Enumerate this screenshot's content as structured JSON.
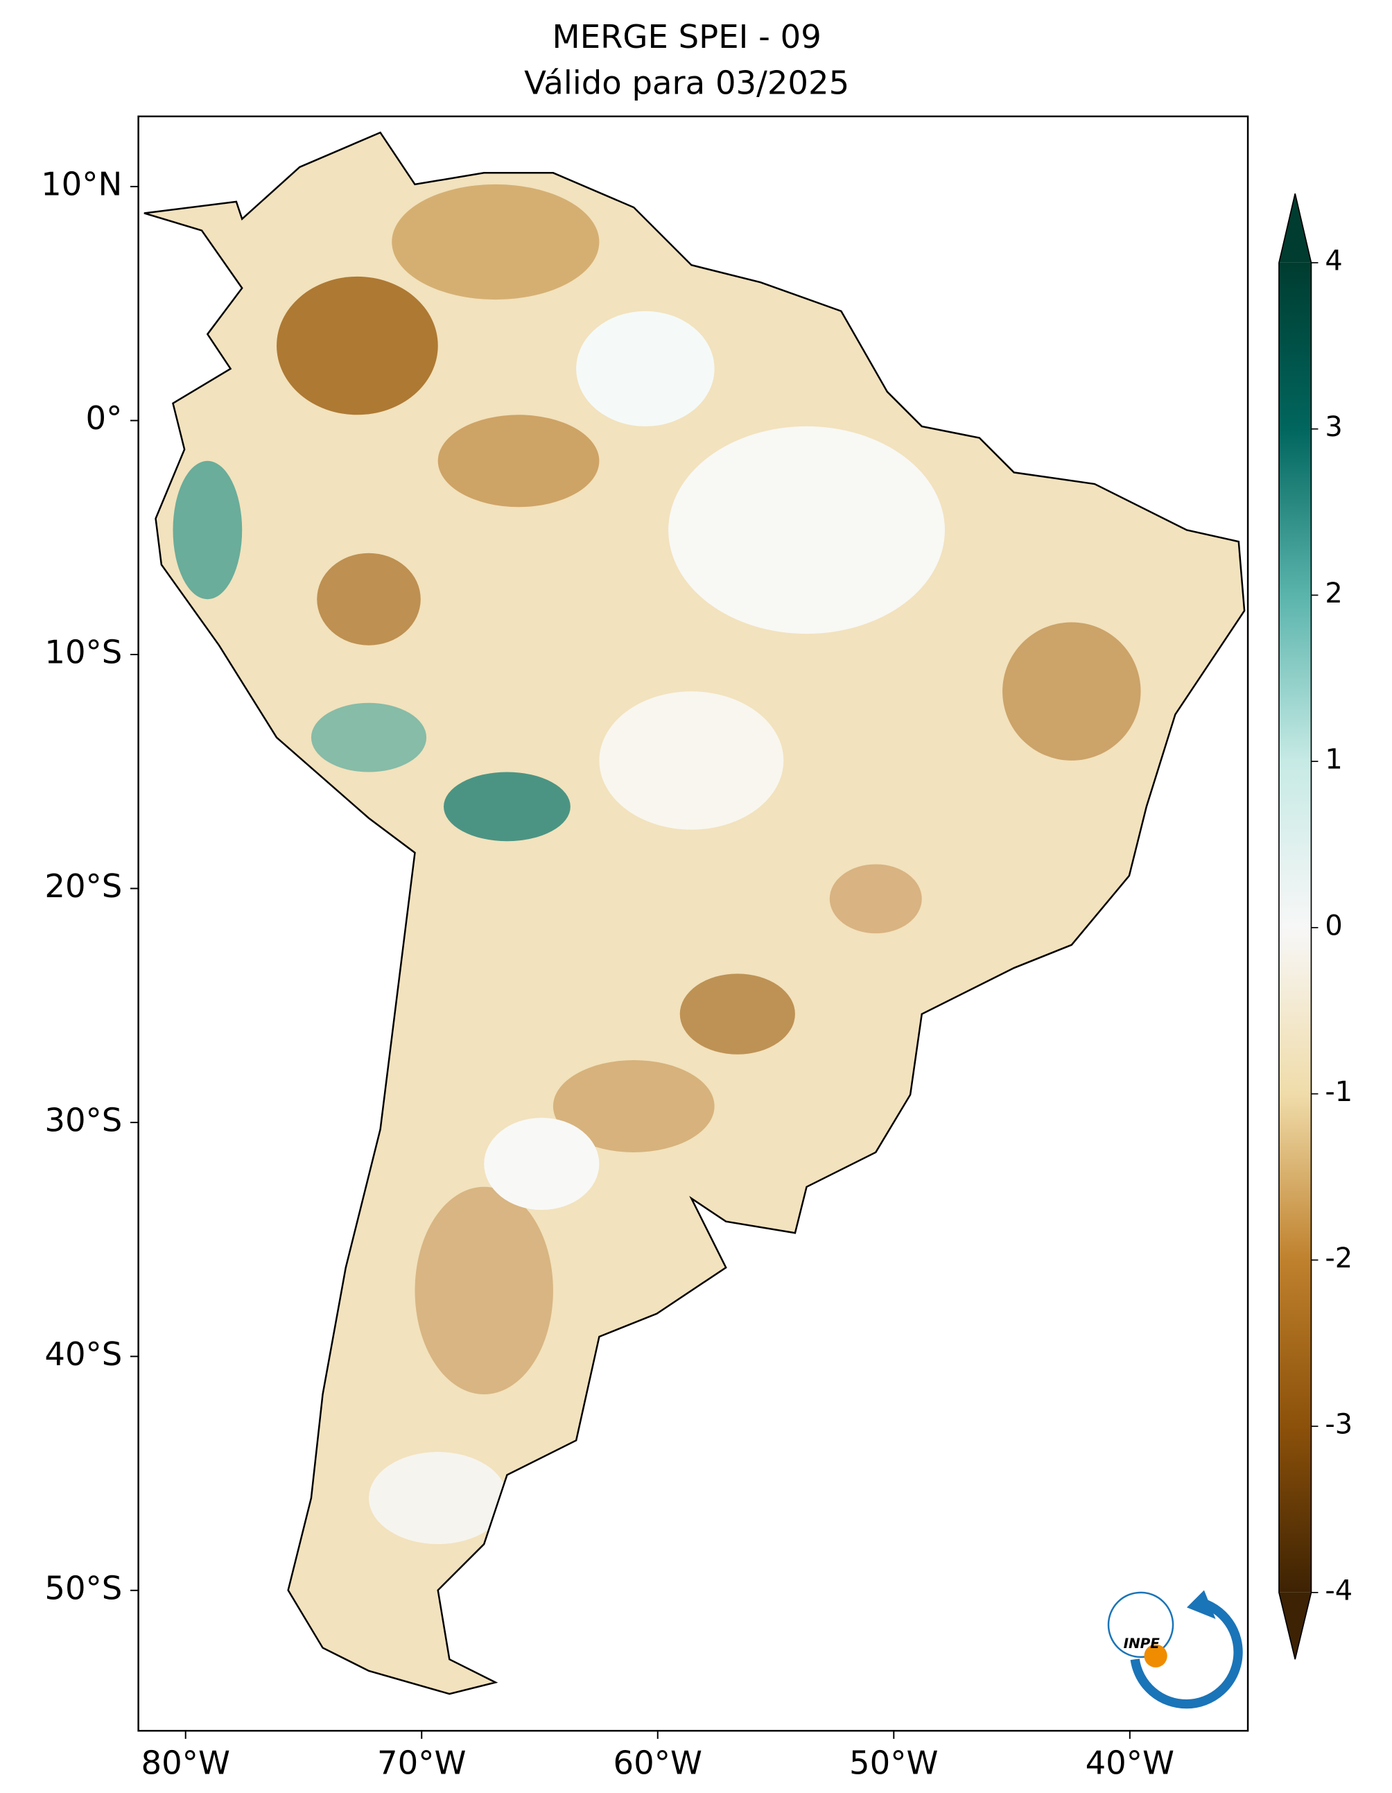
{
  "header": {
    "title": "MERGE   SPEI - 09",
    "subtitle": "Válido para 03/2025"
  },
  "map": {
    "xlim": [
      -82,
      -35
    ],
    "ylim": [
      -56,
      13
    ],
    "xticks": [
      {
        "value": -80,
        "label": "80°W"
      },
      {
        "value": -70,
        "label": "70°W"
      },
      {
        "value": -60,
        "label": "60°W"
      },
      {
        "value": -50,
        "label": "50°W"
      },
      {
        "value": -40,
        "label": "40°W"
      }
    ],
    "yticks": [
      {
        "value": 10,
        "label": "10°N"
      },
      {
        "value": 0,
        "label": "0°"
      },
      {
        "value": -10,
        "label": "10°S"
      },
      {
        "value": -20,
        "label": "20°S"
      },
      {
        "value": -30,
        "label": "30°S"
      },
      {
        "value": -40,
        "label": "40°S"
      },
      {
        "value": -50,
        "label": "50°S"
      }
    ]
  },
  "colorbar": {
    "lim": [
      -4,
      4
    ],
    "ticks": [
      4,
      3,
      2,
      1,
      0,
      -1,
      -2,
      -3,
      -4
    ]
  },
  "logo": {
    "text": "INPE"
  }
}
